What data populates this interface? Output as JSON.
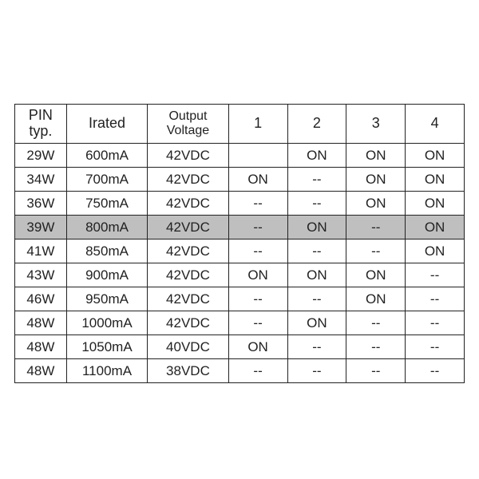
{
  "table": {
    "type": "table",
    "background_color": "#ffffff",
    "border_color": "#222222",
    "text_color": "#222222",
    "highlight_color": "#bfbfbf",
    "header_fontsize": 18,
    "cell_fontsize": 17,
    "columns": [
      {
        "key": "pin",
        "label": "PIN typ.",
        "width_pct": 11.5,
        "align": "center"
      },
      {
        "key": "irated",
        "label": "Irated",
        "width_pct": 18.0,
        "align": "center"
      },
      {
        "key": "output",
        "label": "Output\nVoltage",
        "width_pct": 18.0,
        "align": "center"
      },
      {
        "key": "s1",
        "label": "1",
        "width_pct": 13.1,
        "align": "center"
      },
      {
        "key": "s2",
        "label": "2",
        "width_pct": 13.1,
        "align": "center"
      },
      {
        "key": "s3",
        "label": "3",
        "width_pct": 13.1,
        "align": "center"
      },
      {
        "key": "s4",
        "label": "4",
        "width_pct": 13.1,
        "align": "center"
      }
    ],
    "highlight_row_index": 3,
    "rows": [
      {
        "pin": "29W",
        "irated": "600mA",
        "output": "42VDC",
        "s1": "",
        "s2": "ON",
        "s3": "ON",
        "s4": "ON"
      },
      {
        "pin": "34W",
        "irated": "700mA",
        "output": "42VDC",
        "s1": "ON",
        "s2": "--",
        "s3": "ON",
        "s4": "ON"
      },
      {
        "pin": "36W",
        "irated": "750mA",
        "output": "42VDC",
        "s1": "--",
        "s2": "--",
        "s3": "ON",
        "s4": "ON"
      },
      {
        "pin": "39W",
        "irated": "800mA",
        "output": "42VDC",
        "s1": "--",
        "s2": "ON",
        "s3": "--",
        "s4": "ON"
      },
      {
        "pin": "41W",
        "irated": "850mA",
        "output": "42VDC",
        "s1": "--",
        "s2": "--",
        "s3": "--",
        "s4": "ON"
      },
      {
        "pin": "43W",
        "irated": "900mA",
        "output": "42VDC",
        "s1": "ON",
        "s2": "ON",
        "s3": "ON",
        "s4": "--"
      },
      {
        "pin": "46W",
        "irated": "950mA",
        "output": "42VDC",
        "s1": "--",
        "s2": "--",
        "s3": "ON",
        "s4": "--"
      },
      {
        "pin": "48W",
        "irated": "1000mA",
        "output": "42VDC",
        "s1": "--",
        "s2": "ON",
        "s3": "--",
        "s4": "--"
      },
      {
        "pin": "48W",
        "irated": "1050mA",
        "output": "40VDC",
        "s1": "ON",
        "s2": "--",
        "s3": "--",
        "s4": "--"
      },
      {
        "pin": "48W",
        "irated": "1100mA",
        "output": "38VDC",
        "s1": "--",
        "s2": "--",
        "s3": "--",
        "s4": "--"
      }
    ]
  }
}
